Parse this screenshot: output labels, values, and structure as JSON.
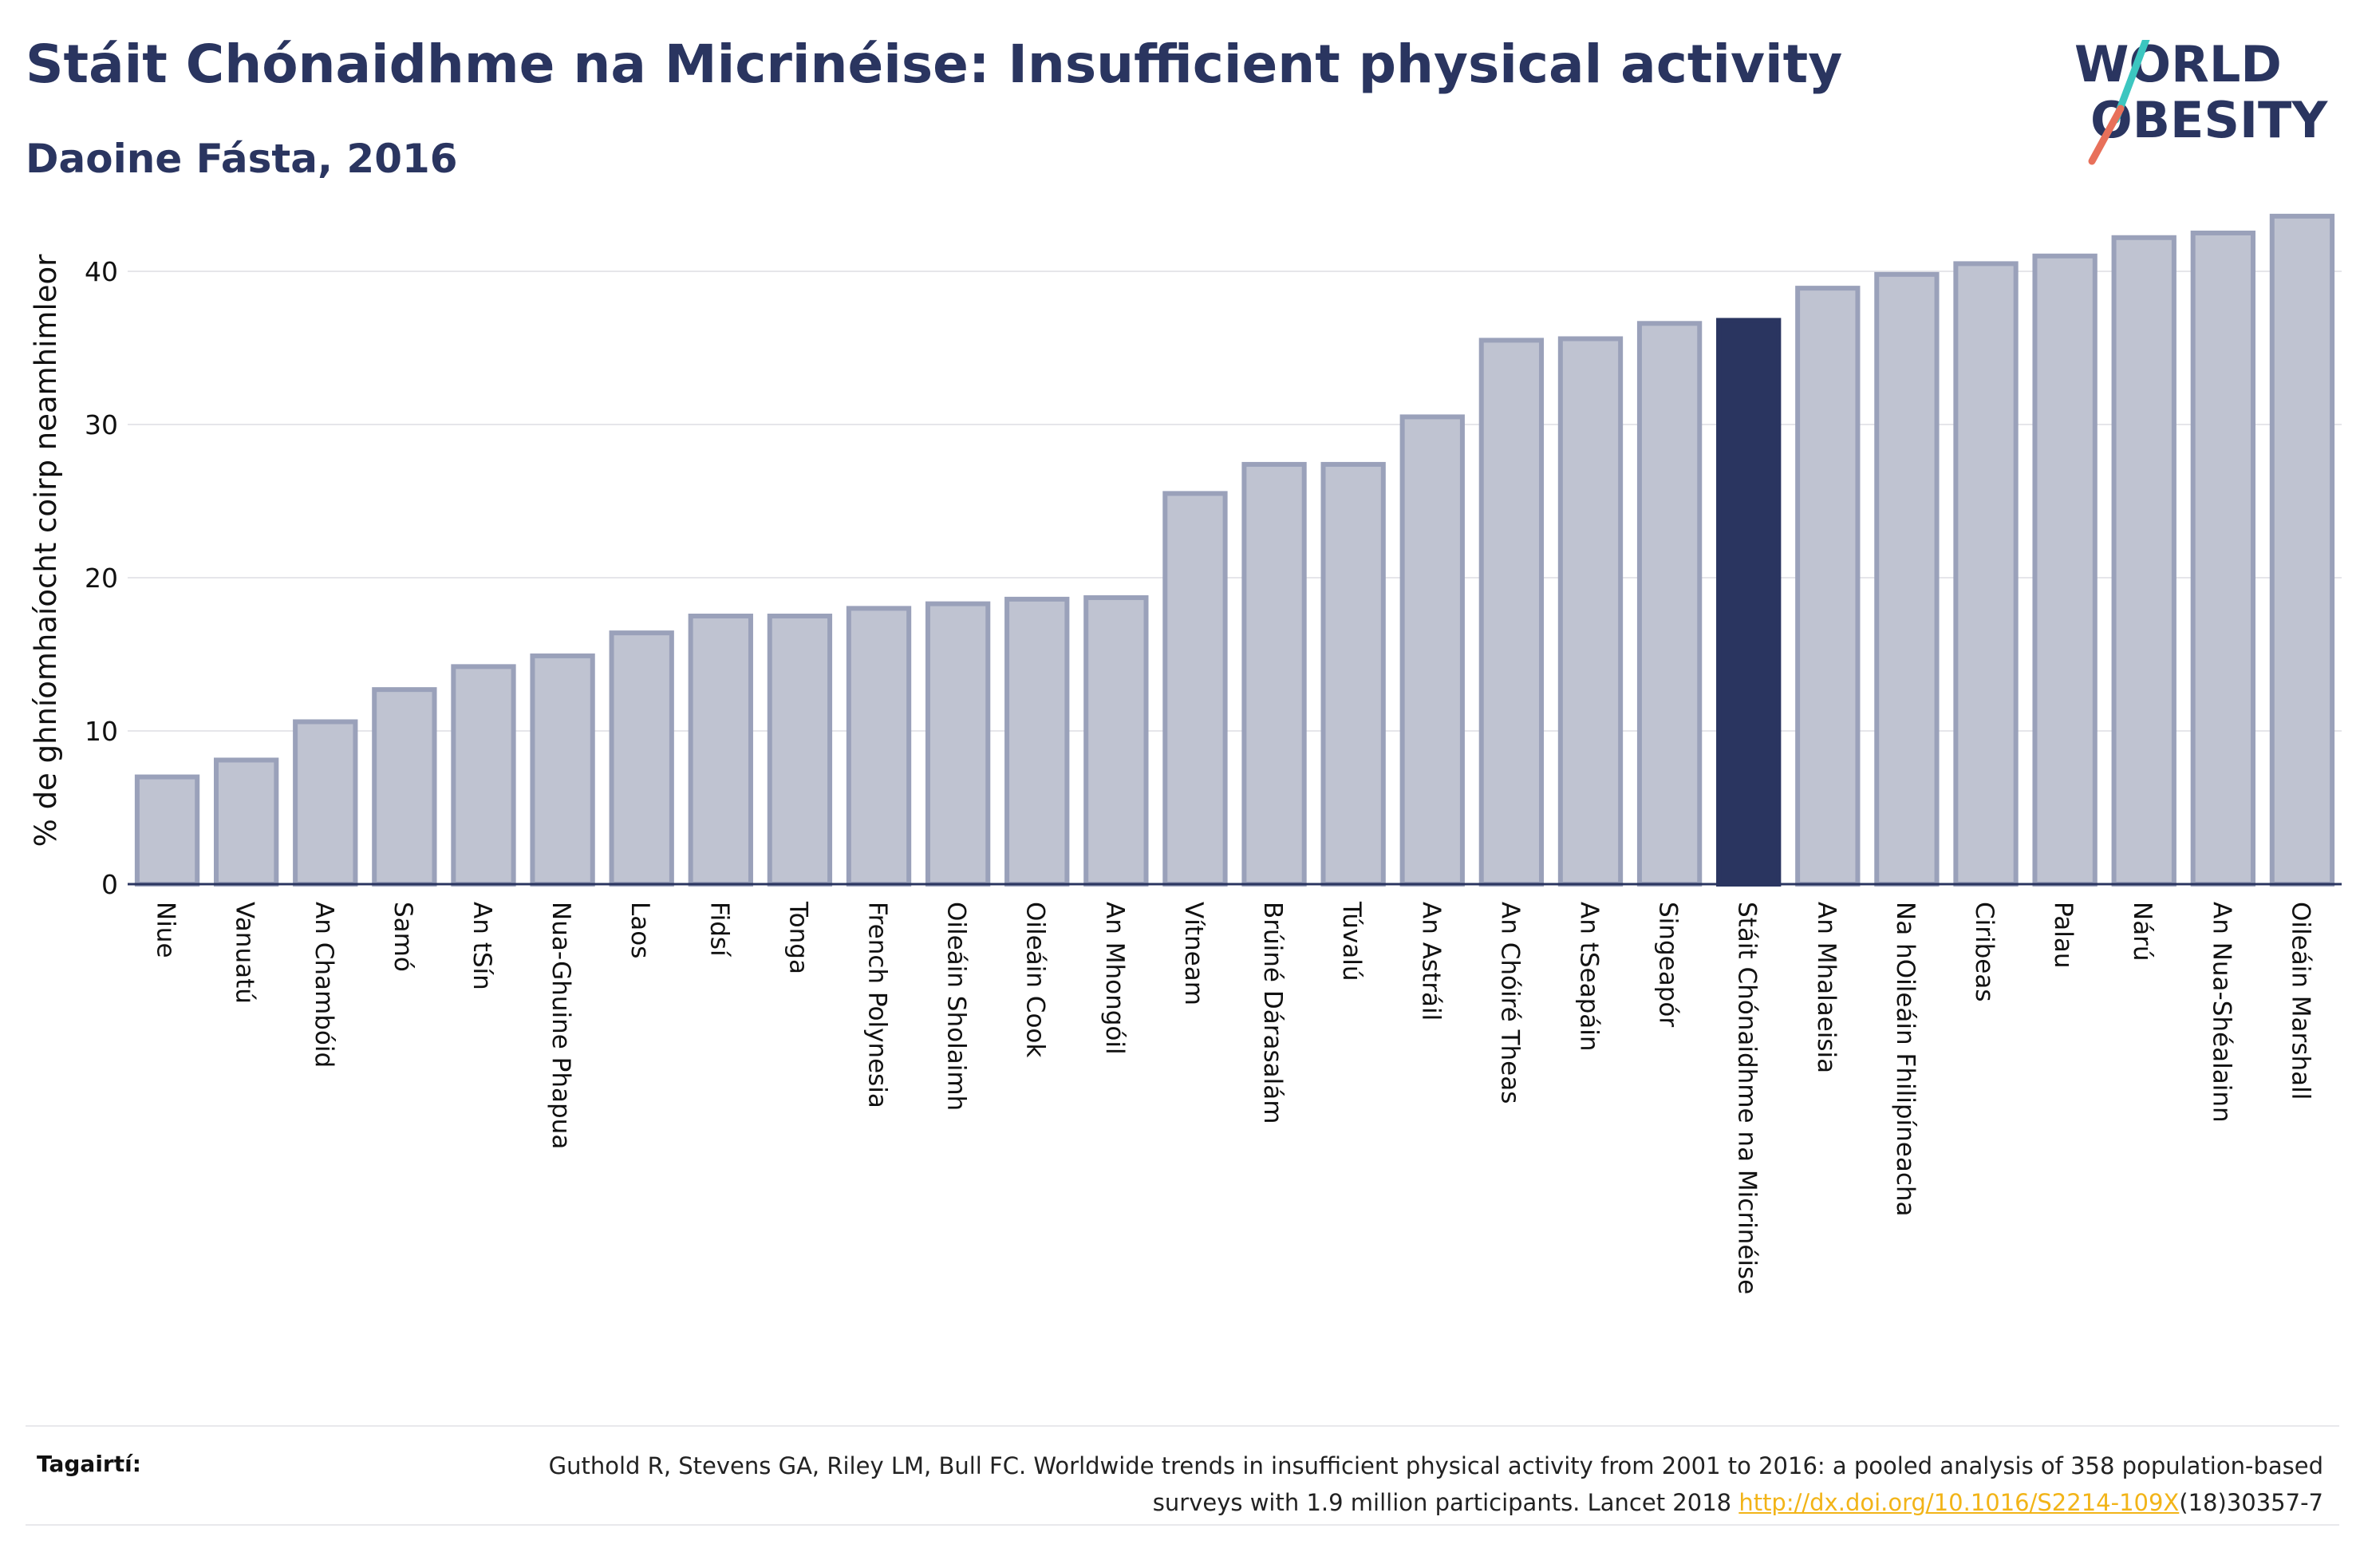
{
  "header": {
    "title": "Stáit Chónaidhme na Micrinéise: Insufficient physical activity",
    "subtitle": "Daoine Fásta, 2016"
  },
  "logo": {
    "line1": "WORLD",
    "line2": "OBESITY",
    "accent_colors": [
      "#3cc6c0",
      "#e8705a"
    ]
  },
  "colors": {
    "bar": "#bfc3d1",
    "bar_border": "#9aa1ba",
    "highlight": "#2a3560",
    "grid": "#e6e6ea",
    "axis": "#2a3560"
  },
  "chart_data": {
    "type": "bar",
    "ylabel": "% de ghníomhaíocht coirp neamhimleor",
    "ylim": [
      0,
      45
    ],
    "yticks": [
      0,
      10,
      20,
      30,
      40
    ],
    "grid": true,
    "highlight": "Stáit Chónaidhme na Micrinéise",
    "categories": [
      "Niue",
      "Vanuatú",
      "An Chambóid",
      "Samó",
      "An tSín",
      "Nua-Ghuine Phapua",
      "Laos",
      "Fidsí",
      "Tonga",
      "French Polynesia",
      "Oileáin Sholaimh",
      "Oileáin Cook",
      "An Mhongóil",
      "Vítneam",
      "Brúiné Dárasalám",
      "Túvalú",
      "An Astráil",
      "An Chóiré Theas",
      "An tSeapáin",
      "Singeapór",
      "Stáit Chónaidhme na Micrinéise",
      "An Mhalaeisia",
      "Na hOileáin Fhilipíneacha",
      "Ciribeas",
      "Palau",
      "Nárú",
      "An Nua-Shéalainn",
      "Oileáin Marshall"
    ],
    "values": [
      7.0,
      8.1,
      10.6,
      12.7,
      14.2,
      14.9,
      16.4,
      17.5,
      17.5,
      18.0,
      18.3,
      18.6,
      18.7,
      25.5,
      27.4,
      27.4,
      30.5,
      35.5,
      35.6,
      36.6,
      36.8,
      38.9,
      39.8,
      40.5,
      41.0,
      42.2,
      42.5,
      43.6
    ]
  },
  "references": {
    "label": "Tagairtí:",
    "text_before": "Guthold R, Stevens GA, Riley LM, Bull FC. Worldwide trends in insufficient physical activity from 2001 to 2016: a pooled analysis of 358 population-based surveys with 1.9 million participants. Lancet 2018 ",
    "link": "http://dx.doi.org/10.1016/S2214-109X",
    "text_after": "(18)30357-7"
  }
}
